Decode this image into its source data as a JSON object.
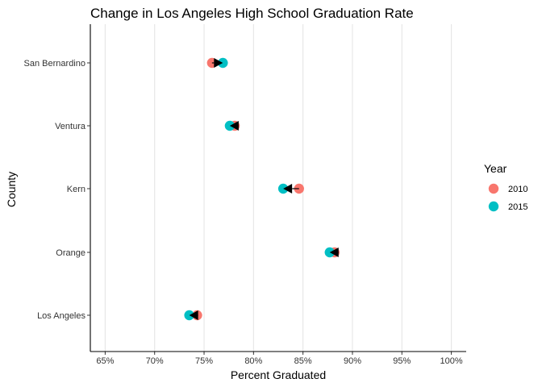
{
  "chart_data": {
    "type": "dumbbell",
    "title": "Change in Los Angeles High School Graduation Rate",
    "xlabel": "Percent Graduated",
    "ylabel": "County",
    "xlim": [
      0.635,
      1.015
    ],
    "xticks": [
      0.65,
      0.7,
      0.75,
      0.8,
      0.85,
      0.9,
      0.95,
      1.0
    ],
    "xtick_labels": [
      "65%",
      "70%",
      "75%",
      "80%",
      "85%",
      "90%",
      "95%",
      "100%"
    ],
    "grid": "vertical-major",
    "legend": {
      "title": "Year",
      "placement": "right",
      "entries": [
        {
          "label": "2010",
          "color": "#F8766D"
        },
        {
          "label": "2015",
          "color": "#00BFC4"
        }
      ]
    },
    "categories": [
      "San Bernardino",
      "Ventura",
      "Kern",
      "Orange",
      "Los Angeles"
    ],
    "highlight_category": "Los Angeles",
    "highlight_color": "#FF0000",
    "series": [
      {
        "name": "2010",
        "color": "#F8766D",
        "values": [
          0.758,
          0.781,
          0.846,
          0.882,
          0.743
        ]
      },
      {
        "name": "2015",
        "color": "#00BFC4",
        "values": [
          0.769,
          0.776,
          0.83,
          0.877,
          0.735
        ]
      }
    ],
    "arrow_color": "#000000"
  }
}
